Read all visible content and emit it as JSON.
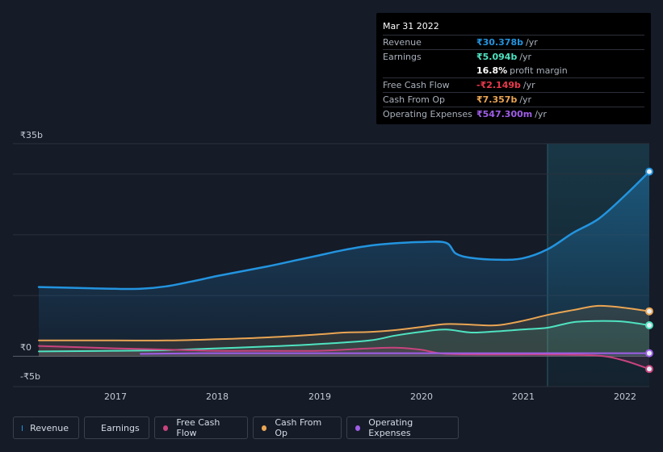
{
  "tooltip": {
    "date": "Mar 31 2022",
    "rows": [
      {
        "label": "Revenue",
        "value": "₹30.378b",
        "unit": "/yr",
        "color": "#2394df"
      },
      {
        "label": "Earnings",
        "value": "₹5.094b",
        "unit": "/yr",
        "color": "#4fe3c1"
      },
      {
        "label": "",
        "value": "16.8%",
        "unit": "profit margin",
        "color": "#ffffff"
      },
      {
        "label": "Free Cash Flow",
        "value": "-₹2.149b",
        "unit": "/yr",
        "color": "#e8394c"
      },
      {
        "label": "Cash From Op",
        "value": "₹7.357b",
        "unit": "/yr",
        "color": "#eaa553"
      },
      {
        "label": "Operating Expenses",
        "value": "₹547.300m",
        "unit": "/yr",
        "color": "#9f5ee8"
      }
    ]
  },
  "legend": [
    {
      "label": "Revenue",
      "color": "#2394df"
    },
    {
      "label": "Earnings",
      "color": "#4fe3c1"
    },
    {
      "label": "Free Cash Flow",
      "color": "#c8437f"
    },
    {
      "label": "Cash From Op",
      "color": "#eaa553"
    },
    {
      "label": "Operating Expenses",
      "color": "#9f5ee8"
    }
  ],
  "chart_data": {
    "type": "area",
    "y_tick_labels": [
      "₹35b",
      "₹0",
      "-₹5b"
    ],
    "x_tick_labels": [
      "2017",
      "2018",
      "2019",
      "2020",
      "2021",
      "2022"
    ],
    "xlim": [
      2016.25,
      2022.25
    ],
    "ylim": [
      -5,
      35
    ],
    "highlight_start": 2021.25,
    "grid": true,
    "legend_position": "bottom",
    "series": [
      {
        "name": "Revenue",
        "color": "#2394df",
        "x": [
          2016.25,
          2016.75,
          2017.0,
          2017.25,
          2017.5,
          2017.75,
          2018.0,
          2018.25,
          2018.5,
          2018.75,
          2019.0,
          2019.25,
          2019.5,
          2019.75,
          2020.0,
          2020.25,
          2020.35,
          2020.5,
          2020.75,
          2021.0,
          2021.25,
          2021.5,
          2021.75,
          2022.0,
          2022.25
        ],
        "values": [
          11.4,
          11.2,
          11.1,
          11.1,
          11.5,
          12.3,
          13.2,
          14.0,
          14.8,
          15.7,
          16.6,
          17.5,
          18.2,
          18.6,
          18.8,
          18.7,
          16.9,
          16.2,
          15.9,
          16.1,
          17.6,
          20.3,
          22.6,
          26.3,
          30.4
        ]
      },
      {
        "name": "Earnings",
        "color": "#4fe3c1",
        "x": [
          2016.25,
          2017.0,
          2017.5,
          2018.0,
          2018.5,
          2019.0,
          2019.5,
          2019.75,
          2020.0,
          2020.25,
          2020.5,
          2020.75,
          2021.0,
          2021.25,
          2021.5,
          2021.75,
          2022.0,
          2022.25
        ],
        "values": [
          0.8,
          0.9,
          1.0,
          1.3,
          1.6,
          2.0,
          2.6,
          3.4,
          4.0,
          4.4,
          3.9,
          4.1,
          4.4,
          4.7,
          5.6,
          5.8,
          5.7,
          5.1
        ]
      },
      {
        "name": "Free Cash Flow",
        "color": "#c8437f",
        "x": [
          2016.25,
          2017.0,
          2017.5,
          2018.0,
          2018.5,
          2019.0,
          2019.5,
          2019.75,
          2020.0,
          2020.25,
          2020.75,
          2021.25,
          2021.75,
          2022.0,
          2022.25
        ],
        "values": [
          1.7,
          1.3,
          1.1,
          0.9,
          0.9,
          0.9,
          1.3,
          1.4,
          1.1,
          0.4,
          0.3,
          0.3,
          0.1,
          -0.7,
          -2.1
        ]
      },
      {
        "name": "Cash From Op",
        "color": "#eaa553",
        "x": [
          2016.25,
          2017.0,
          2017.5,
          2018.0,
          2018.5,
          2019.0,
          2019.25,
          2019.5,
          2019.75,
          2020.0,
          2020.25,
          2020.5,
          2020.75,
          2021.0,
          2021.25,
          2021.5,
          2021.75,
          2022.0,
          2022.25
        ],
        "values": [
          2.6,
          2.6,
          2.6,
          2.8,
          3.1,
          3.6,
          3.9,
          4.0,
          4.3,
          4.8,
          5.3,
          5.2,
          5.1,
          5.8,
          6.8,
          7.6,
          8.3,
          8.0,
          7.4
        ]
      },
      {
        "name": "Operating Expenses",
        "color": "#9f5ee8",
        "x": [
          2017.25,
          2018.0,
          2019.0,
          2020.0,
          2021.0,
          2022.0,
          2022.25
        ],
        "values": [
          0.4,
          0.5,
          0.5,
          0.5,
          0.5,
          0.5,
          0.5
        ]
      }
    ]
  }
}
